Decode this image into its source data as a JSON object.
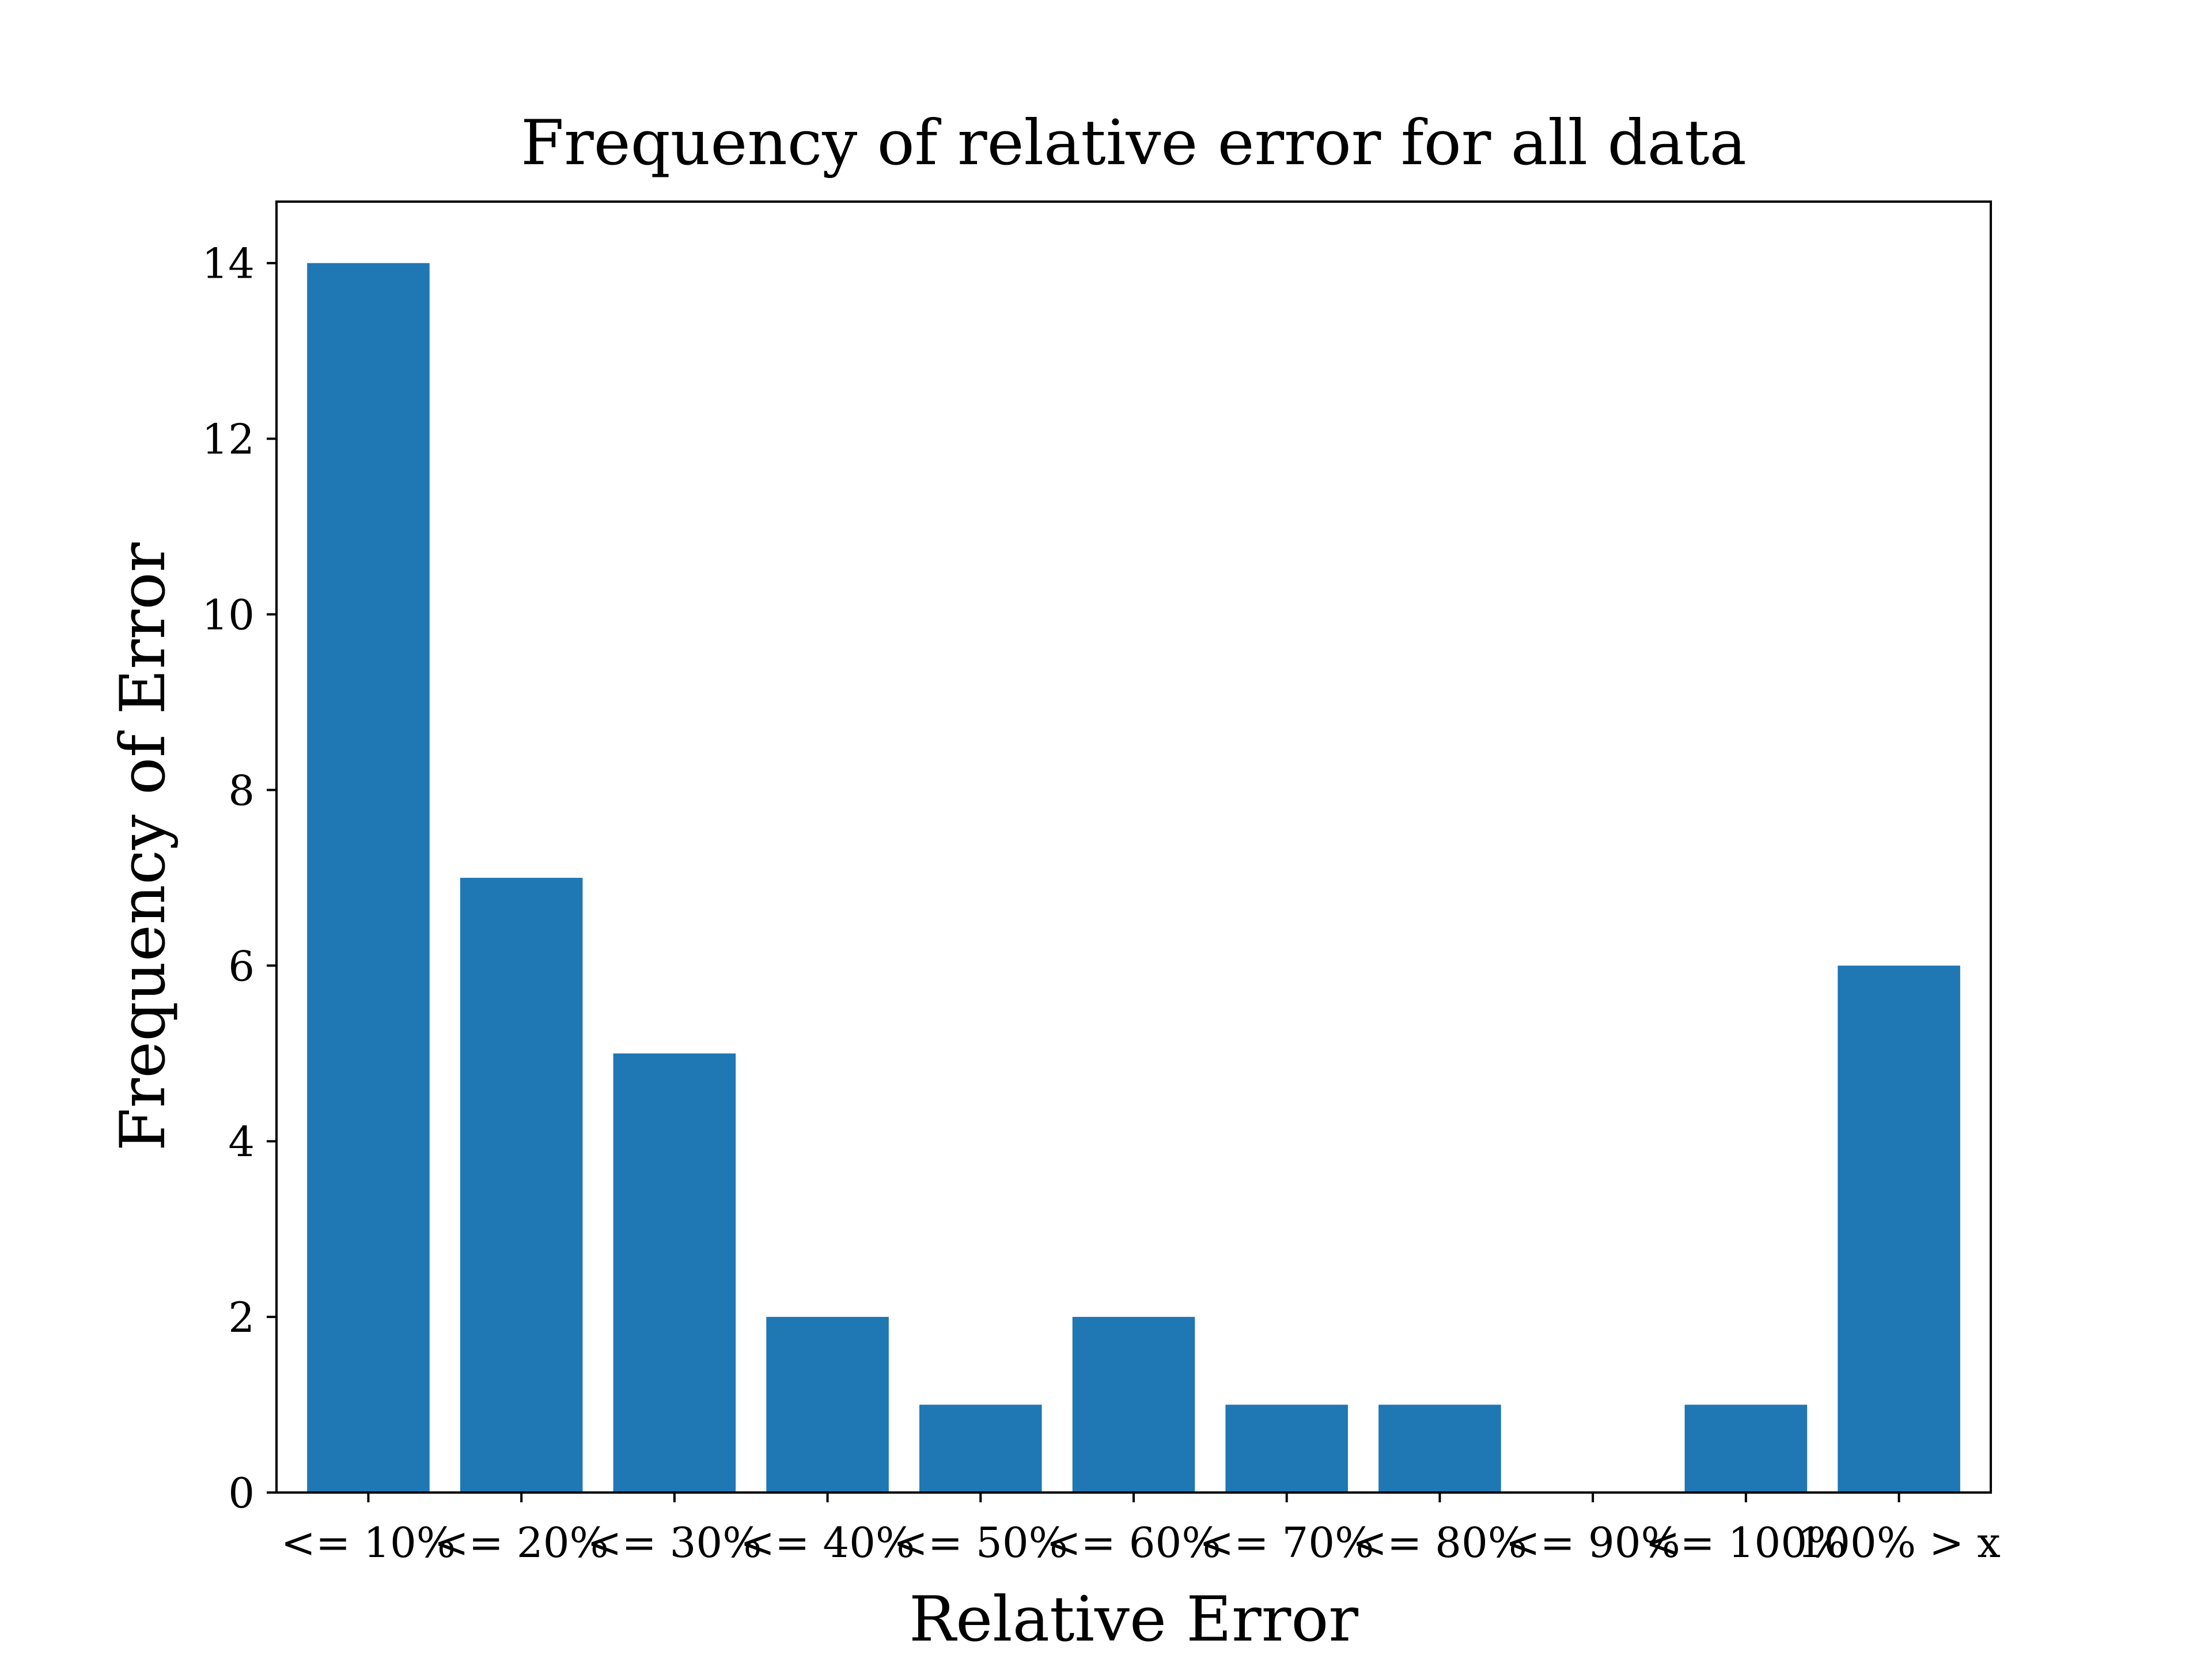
{
  "chart_data": {
    "type": "bar",
    "title": "Frequency of relative error for all data",
    "xlabel": "Relative Error",
    "ylabel": "Frequency of Error",
    "categories": [
      "<= 10%",
      "<= 20%",
      "<= 30%",
      "<= 40%",
      "<= 50%",
      "<= 60%",
      "<= 70%",
      "<= 80%",
      "<= 90%",
      "<= 100%",
      "100% > x"
    ],
    "values": [
      14,
      7,
      5,
      2,
      1,
      2,
      1,
      1,
      0,
      1,
      6
    ],
    "ylim": [
      0,
      14.7
    ],
    "yticks": [
      0,
      2,
      4,
      6,
      8,
      10,
      12,
      14
    ],
    "bar_color": "#1f77b4",
    "grid": false,
    "legend": false
  }
}
